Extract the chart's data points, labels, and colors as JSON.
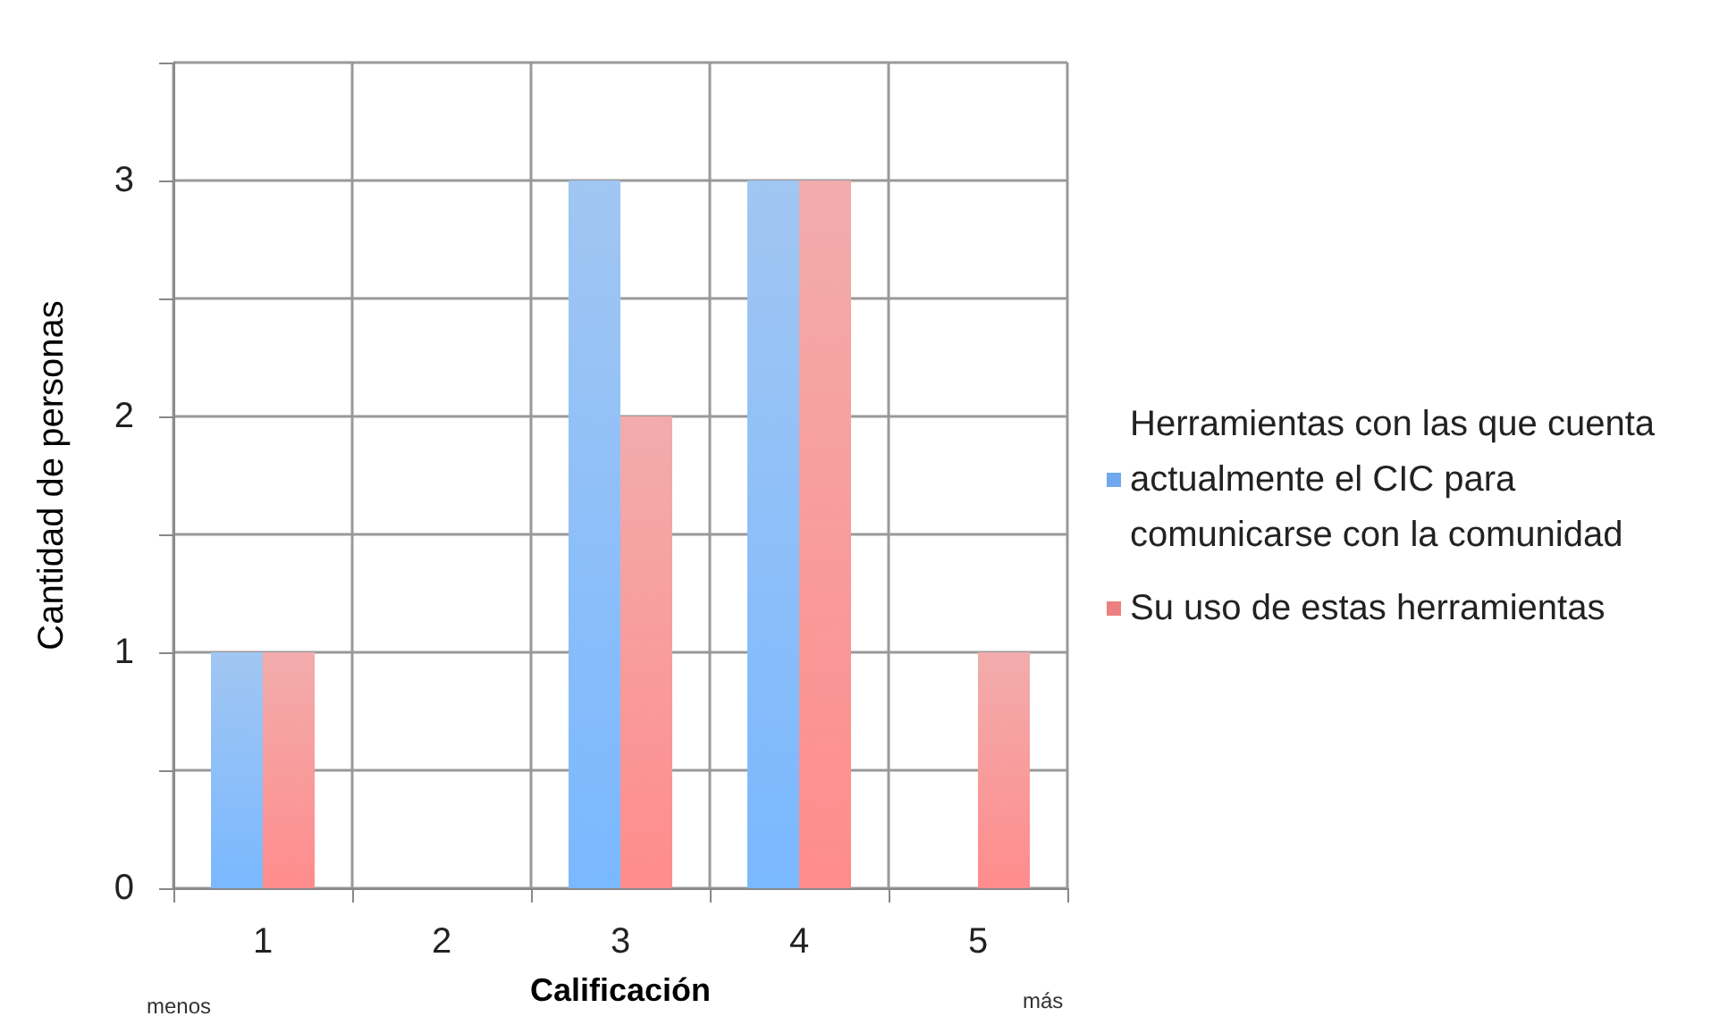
{
  "chart_data": {
    "type": "bar",
    "xlabel": "Calificación",
    "ylabel": "Cantidad de personas",
    "categories": [
      "1",
      "2",
      "3",
      "4",
      "5"
    ],
    "series": [
      {
        "name": "Herramientas con las que cuenta actualmente el CIC para comunicarse con la comunidad",
        "color": "#6fa8ec",
        "values": [
          1,
          0,
          3,
          3,
          0
        ]
      },
      {
        "name": "Su uso de estas herramientas",
        "color": "#ec8080",
        "values": [
          1,
          0,
          2,
          3,
          1
        ]
      }
    ],
    "ylim": [
      0,
      3.5
    ],
    "yticks": [
      0,
      {
        "value": 0.5,
        "label": null
      },
      1,
      {
        "value": 1.5,
        "label": null
      },
      2,
      {
        "value": 2.5,
        "label": null
      },
      3,
      {
        "value": 3.5,
        "label": null
      }
    ],
    "grid": true,
    "legend": "right",
    "annotations": [
      "menos",
      "más"
    ]
  }
}
